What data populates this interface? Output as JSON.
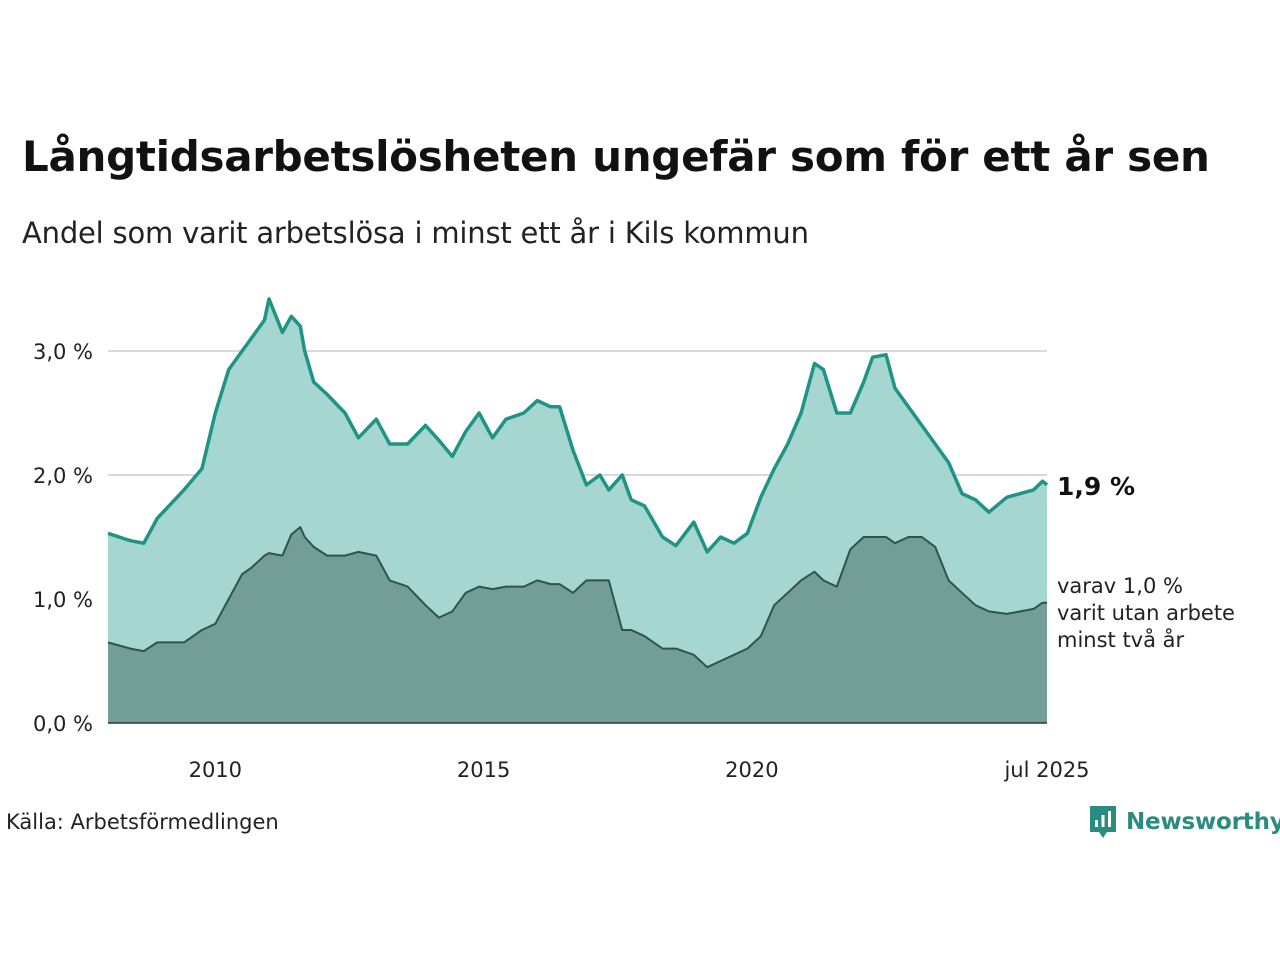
{
  "title": "Långtidsarbetslösheten ungefär som för ett år sen",
  "subtitle": "Andel som varit arbetslösa i minst ett år i Kils kommun",
  "source": "Källa: Arbetsförmedlingen",
  "brand": {
    "name": "Newsworthy"
  },
  "colors": {
    "series1_line": "#1f9485",
    "series1_fill": "#a5d6d0",
    "series2_line": "#2f5450",
    "series2_fill": "#739e98",
    "grid": "#d9d9d9",
    "text": "#111111"
  },
  "chart_data": {
    "type": "area",
    "x_range": [
      "2008-01",
      "2025-07"
    ],
    "y_range": [
      0,
      3.5
    ],
    "y_ticks": [
      {
        "value": 0,
        "label": "0,0 %"
      },
      {
        "value": 1,
        "label": "1,0 %"
      },
      {
        "value": 2,
        "label": "2,0 %"
      },
      {
        "value": 3,
        "label": "3,0 %"
      }
    ],
    "x_ticks": [
      {
        "date": "2010-01",
        "label": "2010"
      },
      {
        "date": "2015-01",
        "label": "2015"
      },
      {
        "date": "2020-01",
        "label": "2020"
      },
      {
        "date": "2025-07",
        "label": "jul 2025"
      }
    ],
    "grid": true,
    "series": [
      {
        "key": "minst_ett_ar",
        "points": [
          [
            "2008-01",
            1.53
          ],
          [
            "2008-06",
            1.47
          ],
          [
            "2008-09",
            1.45
          ],
          [
            "2008-12",
            1.65
          ],
          [
            "2009-06",
            1.88
          ],
          [
            "2009-10",
            2.05
          ],
          [
            "2010-01",
            2.5
          ],
          [
            "2010-04",
            2.85
          ],
          [
            "2010-07",
            3.0
          ],
          [
            "2010-09",
            3.1
          ],
          [
            "2010-12",
            3.25
          ],
          [
            "2011-01",
            3.42
          ],
          [
            "2011-04",
            3.15
          ],
          [
            "2011-06",
            3.28
          ],
          [
            "2011-08",
            3.2
          ],
          [
            "2011-09",
            3.0
          ],
          [
            "2011-11",
            2.75
          ],
          [
            "2012-02",
            2.65
          ],
          [
            "2012-06",
            2.5
          ],
          [
            "2012-09",
            2.3
          ],
          [
            "2013-01",
            2.45
          ],
          [
            "2013-04",
            2.25
          ],
          [
            "2013-08",
            2.25
          ],
          [
            "2013-12",
            2.4
          ],
          [
            "2014-03",
            2.28
          ],
          [
            "2014-06",
            2.15
          ],
          [
            "2014-09",
            2.35
          ],
          [
            "2014-12",
            2.5
          ],
          [
            "2015-03",
            2.3
          ],
          [
            "2015-06",
            2.45
          ],
          [
            "2015-10",
            2.5
          ],
          [
            "2016-01",
            2.6
          ],
          [
            "2016-04",
            2.55
          ],
          [
            "2016-06",
            2.55
          ],
          [
            "2016-09",
            2.2
          ],
          [
            "2016-12",
            1.92
          ],
          [
            "2017-03",
            2.0
          ],
          [
            "2017-05",
            1.88
          ],
          [
            "2017-08",
            2.0
          ],
          [
            "2017-10",
            1.8
          ],
          [
            "2018-01",
            1.75
          ],
          [
            "2018-05",
            1.5
          ],
          [
            "2018-08",
            1.43
          ],
          [
            "2018-12",
            1.62
          ],
          [
            "2019-03",
            1.38
          ],
          [
            "2019-06",
            1.5
          ],
          [
            "2019-09",
            1.45
          ],
          [
            "2019-12",
            1.53
          ],
          [
            "2020-03",
            1.82
          ],
          [
            "2020-06",
            2.05
          ],
          [
            "2020-09",
            2.25
          ],
          [
            "2020-12",
            2.5
          ],
          [
            "2021-03",
            2.9
          ],
          [
            "2021-05",
            2.85
          ],
          [
            "2021-08",
            2.5
          ],
          [
            "2021-11",
            2.5
          ],
          [
            "2022-02",
            2.75
          ],
          [
            "2022-04",
            2.95
          ],
          [
            "2022-07",
            2.97
          ],
          [
            "2022-09",
            2.7
          ],
          [
            "2022-12",
            2.55
          ],
          [
            "2023-03",
            2.4
          ],
          [
            "2023-06",
            2.25
          ],
          [
            "2023-09",
            2.1
          ],
          [
            "2023-12",
            1.85
          ],
          [
            "2024-03",
            1.8
          ],
          [
            "2024-06",
            1.7
          ],
          [
            "2024-10",
            1.82
          ],
          [
            "2025-01",
            1.85
          ],
          [
            "2025-04",
            1.88
          ],
          [
            "2025-06",
            1.95
          ],
          [
            "2025-07",
            1.92
          ]
        ]
      },
      {
        "key": "minst_tva_ar",
        "points": [
          [
            "2008-01",
            0.65
          ],
          [
            "2008-06",
            0.6
          ],
          [
            "2008-09",
            0.58
          ],
          [
            "2008-12",
            0.65
          ],
          [
            "2009-06",
            0.65
          ],
          [
            "2009-10",
            0.75
          ],
          [
            "2010-01",
            0.8
          ],
          [
            "2010-04",
            1.0
          ],
          [
            "2010-07",
            1.2
          ],
          [
            "2010-09",
            1.25
          ],
          [
            "2010-12",
            1.35
          ],
          [
            "2011-01",
            1.37
          ],
          [
            "2011-04",
            1.35
          ],
          [
            "2011-06",
            1.52
          ],
          [
            "2011-08",
            1.58
          ],
          [
            "2011-09",
            1.5
          ],
          [
            "2011-11",
            1.42
          ],
          [
            "2012-02",
            1.35
          ],
          [
            "2012-06",
            1.35
          ],
          [
            "2012-09",
            1.38
          ],
          [
            "2013-01",
            1.35
          ],
          [
            "2013-04",
            1.15
          ],
          [
            "2013-08",
            1.1
          ],
          [
            "2013-12",
            0.95
          ],
          [
            "2014-03",
            0.85
          ],
          [
            "2014-06",
            0.9
          ],
          [
            "2014-09",
            1.05
          ],
          [
            "2014-12",
            1.1
          ],
          [
            "2015-03",
            1.08
          ],
          [
            "2015-06",
            1.1
          ],
          [
            "2015-10",
            1.1
          ],
          [
            "2016-01",
            1.15
          ],
          [
            "2016-04",
            1.12
          ],
          [
            "2016-06",
            1.12
          ],
          [
            "2016-09",
            1.05
          ],
          [
            "2016-12",
            1.15
          ],
          [
            "2017-03",
            1.15
          ],
          [
            "2017-05",
            1.15
          ],
          [
            "2017-08",
            0.75
          ],
          [
            "2017-10",
            0.75
          ],
          [
            "2018-01",
            0.7
          ],
          [
            "2018-05",
            0.6
          ],
          [
            "2018-08",
            0.6
          ],
          [
            "2018-12",
            0.55
          ],
          [
            "2019-03",
            0.45
          ],
          [
            "2019-06",
            0.5
          ],
          [
            "2019-09",
            0.55
          ],
          [
            "2019-12",
            0.6
          ],
          [
            "2020-03",
            0.7
          ],
          [
            "2020-06",
            0.95
          ],
          [
            "2020-09",
            1.05
          ],
          [
            "2020-12",
            1.15
          ],
          [
            "2021-03",
            1.22
          ],
          [
            "2021-05",
            1.15
          ],
          [
            "2021-08",
            1.1
          ],
          [
            "2021-11",
            1.4
          ],
          [
            "2022-02",
            1.5
          ],
          [
            "2022-04",
            1.5
          ],
          [
            "2022-07",
            1.5
          ],
          [
            "2022-09",
            1.45
          ],
          [
            "2022-12",
            1.5
          ],
          [
            "2023-03",
            1.5
          ],
          [
            "2023-06",
            1.42
          ],
          [
            "2023-09",
            1.15
          ],
          [
            "2023-12",
            1.05
          ],
          [
            "2024-03",
            0.95
          ],
          [
            "2024-06",
            0.9
          ],
          [
            "2024-10",
            0.88
          ],
          [
            "2025-01",
            0.9
          ],
          [
            "2025-04",
            0.92
          ],
          [
            "2025-06",
            0.97
          ],
          [
            "2025-07",
            0.97
          ]
        ]
      }
    ],
    "end_labels": {
      "primary": "1,9 %",
      "secondary": [
        "varav 1,0 %",
        "varit utan arbete",
        "minst två år"
      ]
    }
  }
}
